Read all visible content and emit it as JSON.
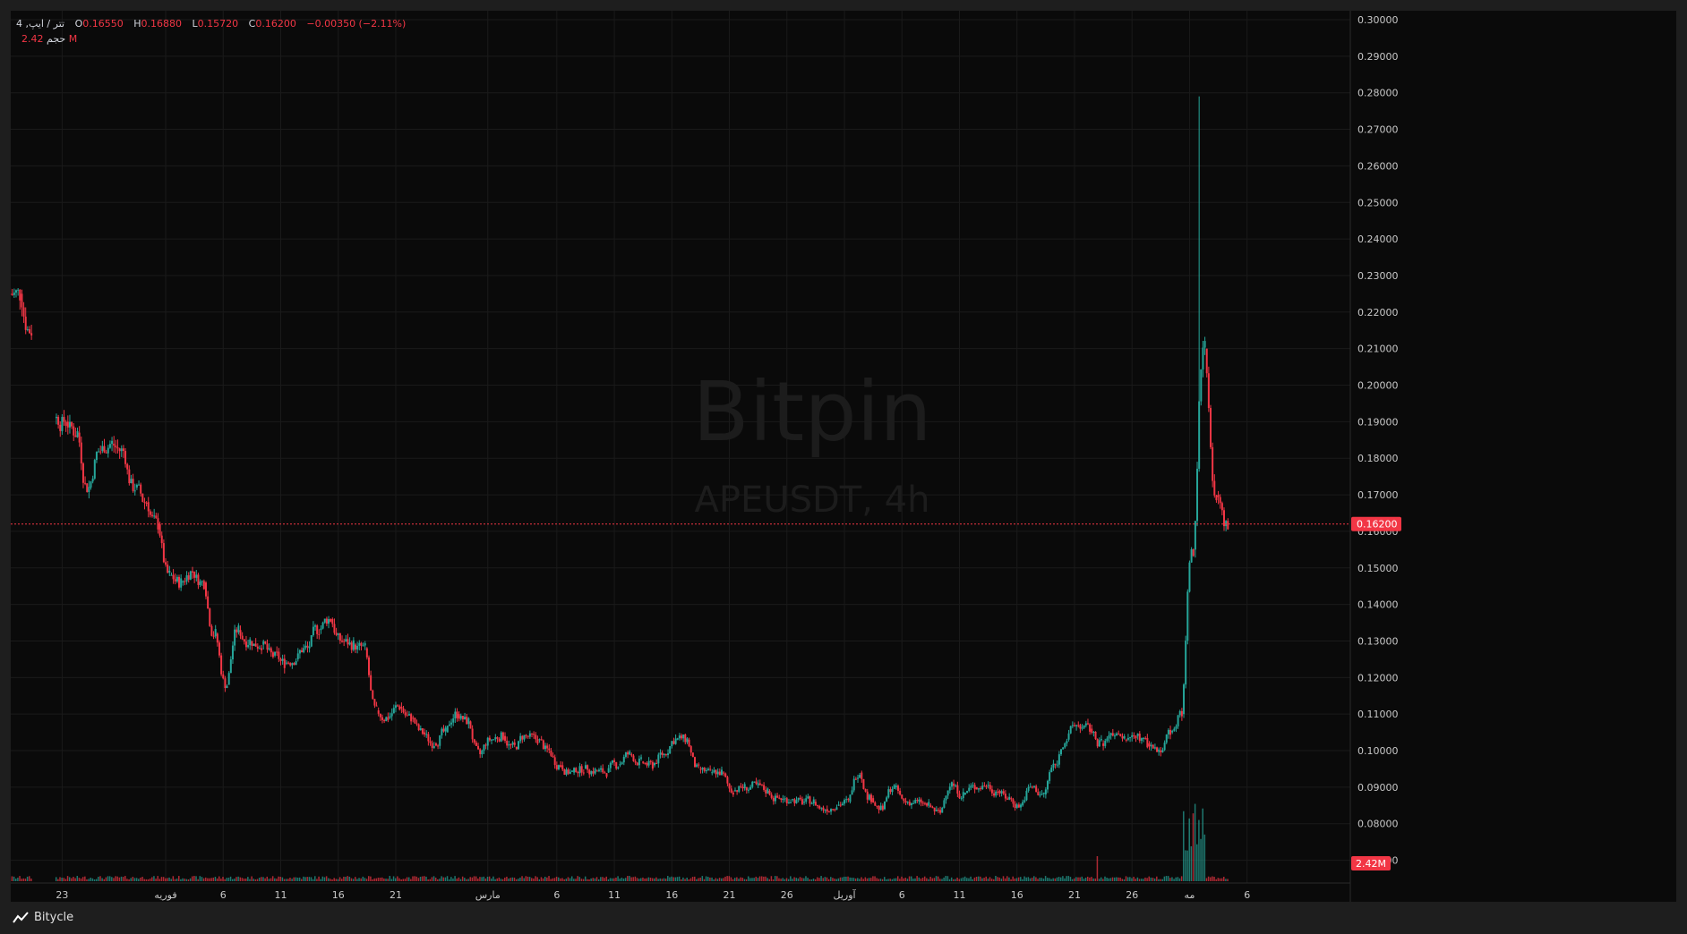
{
  "legend": {
    "symbol_line": "4 ,تتر / ایپ",
    "open_key": "O",
    "open": "0.16550",
    "high_key": "H",
    "high": "0.16880",
    "low_key": "L",
    "low": "0.15720",
    "close_key": "C",
    "close": "0.16200",
    "change": "−0.00350 (−2.11%)",
    "volume_label": "حجم",
    "volume_value": "2.42 M"
  },
  "watermark": {
    "brand": "Bitpin",
    "pair": "APEUSDT, 4h"
  },
  "footer": {
    "brand": "Bitycle"
  },
  "colors": {
    "up": "#26a69a",
    "down": "#f23645",
    "background": "#0a0a0a",
    "grid": "#1a1a1a",
    "axis_text": "#c8c8c8"
  },
  "chart_data": {
    "type": "candlestick",
    "title": "",
    "xlabel": "",
    "ylabel": "",
    "ylim": [
      0.065,
      0.3
    ],
    "y_ticks": [
      "0.30000",
      "0.29000",
      "0.28000",
      "0.27000",
      "0.26000",
      "0.25000",
      "0.24000",
      "0.23000",
      "0.22000",
      "0.21000",
      "0.20000",
      "0.19000",
      "0.18000",
      "0.17000",
      "0.16000",
      "0.15000",
      "0.14000",
      "0.13000",
      "0.12000",
      "0.11000",
      "0.10000",
      "0.09000",
      "0.08000",
      "0.07000"
    ],
    "x_ticks": [
      "23",
      "فوریه",
      "6",
      "11",
      "16",
      "21",
      "مارس",
      "6",
      "11",
      "16",
      "21",
      "26",
      "آوریل",
      "6",
      "11",
      "16",
      "21",
      "26",
      "مه",
      "6"
    ],
    "last_price": "0.16200",
    "last_volume": "2.42M",
    "grid": true,
    "series": [
      {
        "date": "Jan 19",
        "close": 0.225
      },
      {
        "date": "Jan 20",
        "close": 0.215
      },
      {
        "date": "Jan 21",
        "close": 0.213
      },
      {
        "date": "Jan 22",
        "close": 0.191
      },
      {
        "date": "Jan 23",
        "close": 0.19
      },
      {
        "date": "Jan 24",
        "close": 0.187
      },
      {
        "date": "Jan 25",
        "close": 0.172
      },
      {
        "date": "Jan 26",
        "close": 0.182
      },
      {
        "date": "Jan 27",
        "close": 0.184
      },
      {
        "date": "Jan 28",
        "close": 0.182
      },
      {
        "date": "Jan 29",
        "close": 0.172
      },
      {
        "date": "Jan 30",
        "close": 0.168
      },
      {
        "date": "Jan 31",
        "close": 0.162
      },
      {
        "date": "Feb 1",
        "close": 0.148
      },
      {
        "date": "Feb 2",
        "close": 0.146
      },
      {
        "date": "Feb 3",
        "close": 0.149
      },
      {
        "date": "Feb 4",
        "close": 0.146
      },
      {
        "date": "Feb 5",
        "close": 0.132
      },
      {
        "date": "Feb 6",
        "close": 0.118
      },
      {
        "date": "Feb 7",
        "close": 0.133
      },
      {
        "date": "Feb 8",
        "close": 0.13
      },
      {
        "date": "Feb 9",
        "close": 0.129
      },
      {
        "date": "Feb 10",
        "close": 0.126
      },
      {
        "date": "Feb 11",
        "close": 0.124
      },
      {
        "date": "Feb 12",
        "close": 0.125
      },
      {
        "date": "Feb 13",
        "close": 0.128
      },
      {
        "date": "Feb 14",
        "close": 0.133
      },
      {
        "date": "Feb 15",
        "close": 0.136
      },
      {
        "date": "Feb 16",
        "close": 0.13
      },
      {
        "date": "Feb 17",
        "close": 0.129
      },
      {
        "date": "Feb 18",
        "close": 0.128
      },
      {
        "date": "Feb 19",
        "close": 0.111
      },
      {
        "date": "Feb 20",
        "close": 0.109
      },
      {
        "date": "Feb 21",
        "close": 0.112
      },
      {
        "date": "Feb 22",
        "close": 0.109
      },
      {
        "date": "Feb 23",
        "close": 0.105
      },
      {
        "date": "Feb 24",
        "close": 0.102
      },
      {
        "date": "Feb 25",
        "close": 0.105
      },
      {
        "date": "Feb 26",
        "close": 0.11
      },
      {
        "date": "Feb 27",
        "close": 0.108
      },
      {
        "date": "Feb 28",
        "close": 0.099
      },
      {
        "date": "Mar 1",
        "close": 0.103
      },
      {
        "date": "Mar 2",
        "close": 0.104
      },
      {
        "date": "Mar 3",
        "close": 0.101
      },
      {
        "date": "Mar 4",
        "close": 0.104
      },
      {
        "date": "Mar 5",
        "close": 0.103
      },
      {
        "date": "Mar 6",
        "close": 0.1
      },
      {
        "date": "Mar 7",
        "close": 0.096
      },
      {
        "date": "Mar 8",
        "close": 0.094
      },
      {
        "date": "Mar 9",
        "close": 0.095
      },
      {
        "date": "Mar 10",
        "close": 0.0945
      },
      {
        "date": "Mar 11",
        "close": 0.094
      },
      {
        "date": "Mar 12",
        "close": 0.096
      },
      {
        "date": "Mar 13",
        "close": 0.099
      },
      {
        "date": "Mar 14",
        "close": 0.097
      },
      {
        "date": "Mar 15",
        "close": 0.096
      },
      {
        "date": "Mar 16",
        "close": 0.099
      },
      {
        "date": "Mar 17",
        "close": 0.103
      },
      {
        "date": "Mar 18",
        "close": 0.103
      },
      {
        "date": "Mar 19",
        "close": 0.095
      },
      {
        "date": "Mar 20",
        "close": 0.094
      },
      {
        "date": "Mar 21",
        "close": 0.094
      },
      {
        "date": "Mar 22",
        "close": 0.089
      },
      {
        "date": "Mar 23",
        "close": 0.09
      },
      {
        "date": "Mar 24",
        "close": 0.0905
      },
      {
        "date": "Mar 25",
        "close": 0.089
      },
      {
        "date": "Mar 26",
        "close": 0.087
      },
      {
        "date": "Mar 27",
        "close": 0.0865
      },
      {
        "date": "Mar 28",
        "close": 0.086
      },
      {
        "date": "Mar 29",
        "close": 0.086
      },
      {
        "date": "Mar 30",
        "close": 0.084
      },
      {
        "date": "Mar 31",
        "close": 0.085
      },
      {
        "date": "Apr 1",
        "close": 0.086
      },
      {
        "date": "Apr 2",
        "close": 0.094
      },
      {
        "date": "Apr 3",
        "close": 0.087
      },
      {
        "date": "Apr 4",
        "close": 0.084
      },
      {
        "date": "Apr 5",
        "close": 0.09
      },
      {
        "date": "Apr 6",
        "close": 0.086
      },
      {
        "date": "Apr 7",
        "close": 0.086
      },
      {
        "date": "Apr 8",
        "close": 0.085
      },
      {
        "date": "Apr 9",
        "close": 0.083
      },
      {
        "date": "Apr 10",
        "close": 0.091
      },
      {
        "date": "Apr 11",
        "close": 0.088
      },
      {
        "date": "Apr 12",
        "close": 0.09
      },
      {
        "date": "Apr 13",
        "close": 0.0905
      },
      {
        "date": "Apr 14",
        "close": 0.089
      },
      {
        "date": "Apr 15",
        "close": 0.087
      },
      {
        "date": "Apr 16",
        "close": 0.085
      },
      {
        "date": "Apr 17",
        "close": 0.09
      },
      {
        "date": "Apr 18",
        "close": 0.088
      },
      {
        "date": "Apr 19",
        "close": 0.096
      },
      {
        "date": "Apr 20",
        "close": 0.103
      },
      {
        "date": "Apr 21",
        "close": 0.107
      },
      {
        "date": "Apr 22",
        "close": 0.106
      },
      {
        "date": "Apr 23",
        "close": 0.102
      },
      {
        "date": "Apr 24",
        "close": 0.104
      },
      {
        "date": "Apr 25",
        "close": 0.103
      },
      {
        "date": "Apr 26",
        "close": 0.104
      },
      {
        "date": "Apr 27",
        "close": 0.102
      },
      {
        "date": "Apr 28",
        "close": 0.1
      },
      {
        "date": "Apr 29",
        "close": 0.105
      },
      {
        "date": "Apr 30",
        "close": 0.11
      },
      {
        "date": "May 1",
        "close": 0.155
      },
      {
        "date": "May 2",
        "close": 0.21
      },
      {
        "date": "May 3",
        "close": 0.17
      },
      {
        "date": "May 4",
        "close": 0.162
      }
    ]
  }
}
